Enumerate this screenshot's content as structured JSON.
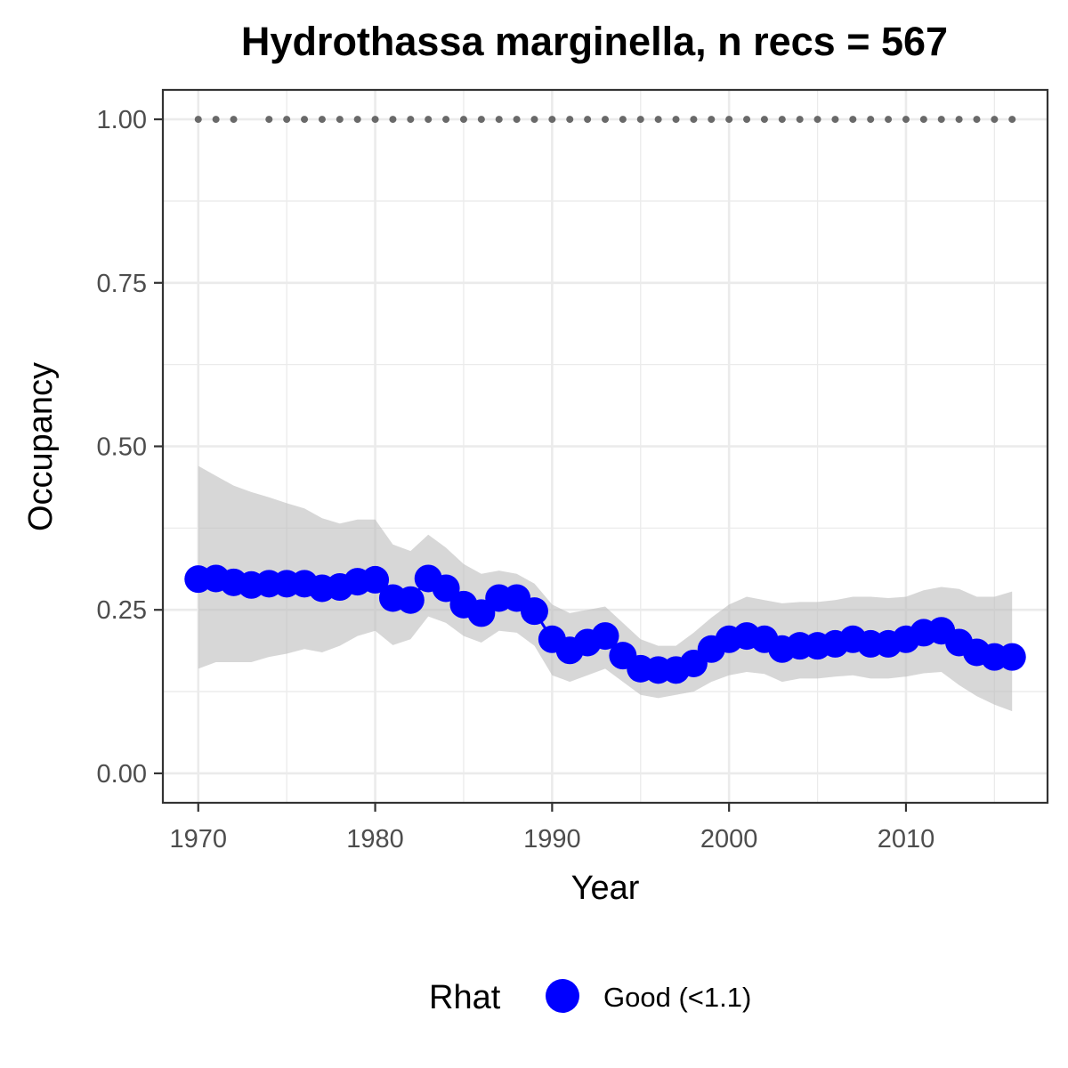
{
  "chart_data": {
    "type": "line",
    "title": "Hydrothassa marginella, n recs = 567",
    "xlabel": "Year",
    "ylabel": "Occupancy",
    "xlim": [
      1968,
      2018
    ],
    "ylim": [
      -0.045,
      1.045
    ],
    "x_ticks": [
      1970,
      1980,
      1990,
      2000,
      2010
    ],
    "x_tick_labels": [
      "1970",
      "1980",
      "1990",
      "2000",
      "2010"
    ],
    "y_ticks": [
      0,
      0.25,
      0.5,
      0.75,
      1.0
    ],
    "y_tick_labels": [
      "0.00",
      "0.25",
      "0.50",
      "0.75",
      "1.00"
    ],
    "grid": true,
    "legend": {
      "title": "Rhat",
      "position": "bottom",
      "entries": [
        {
          "label": "Good (<1.1)",
          "color": "#0000FF"
        }
      ]
    },
    "colors": {
      "series": "#0000FF",
      "ribbon": "#bdbdbd",
      "records": "#696969",
      "grid": "#ebebeb",
      "border": "#333333"
    },
    "series": [
      {
        "name": "Good (<1.1)",
        "x": [
          1970,
          1971,
          1972,
          1973,
          1974,
          1975,
          1976,
          1977,
          1978,
          1979,
          1980,
          1981,
          1982,
          1983,
          1984,
          1985,
          1986,
          1987,
          1988,
          1989,
          1990,
          1991,
          1992,
          1993,
          1994,
          1995,
          1996,
          1997,
          1998,
          1999,
          2000,
          2001,
          2002,
          2003,
          2004,
          2005,
          2006,
          2007,
          2008,
          2009,
          2010,
          2011,
          2012,
          2013,
          2014,
          2015,
          2016
        ],
        "y": [
          0.297,
          0.298,
          0.292,
          0.288,
          0.29,
          0.29,
          0.29,
          0.283,
          0.285,
          0.293,
          0.296,
          0.268,
          0.265,
          0.298,
          0.283,
          0.258,
          0.245,
          0.268,
          0.268,
          0.248,
          0.205,
          0.188,
          0.2,
          0.21,
          0.18,
          0.16,
          0.158,
          0.158,
          0.168,
          0.19,
          0.205,
          0.21,
          0.205,
          0.19,
          0.195,
          0.195,
          0.198,
          0.205,
          0.198,
          0.198,
          0.205,
          0.215,
          0.218,
          0.2,
          0.185,
          0.178,
          0.178
        ],
        "lower": [
          0.16,
          0.17,
          0.17,
          0.17,
          0.178,
          0.183,
          0.19,
          0.185,
          0.195,
          0.21,
          0.218,
          0.196,
          0.205,
          0.24,
          0.23,
          0.21,
          0.2,
          0.218,
          0.215,
          0.195,
          0.15,
          0.14,
          0.15,
          0.16,
          0.14,
          0.12,
          0.115,
          0.12,
          0.125,
          0.14,
          0.15,
          0.155,
          0.152,
          0.14,
          0.145,
          0.145,
          0.148,
          0.15,
          0.145,
          0.145,
          0.148,
          0.153,
          0.155,
          0.135,
          0.118,
          0.105,
          0.095
        ],
        "upper": [
          0.47,
          0.455,
          0.44,
          0.43,
          0.422,
          0.413,
          0.405,
          0.39,
          0.382,
          0.388,
          0.388,
          0.35,
          0.34,
          0.365,
          0.345,
          0.32,
          0.305,
          0.31,
          0.305,
          0.29,
          0.258,
          0.245,
          0.25,
          0.255,
          0.23,
          0.205,
          0.195,
          0.195,
          0.215,
          0.238,
          0.258,
          0.27,
          0.265,
          0.26,
          0.262,
          0.262,
          0.265,
          0.27,
          0.27,
          0.268,
          0.27,
          0.28,
          0.285,
          0.282,
          0.27,
          0.27,
          0.278
        ]
      }
    ],
    "record_years": [
      1970,
      1971,
      1972,
      1974,
      1975,
      1976,
      1977,
      1978,
      1979,
      1980,
      1981,
      1982,
      1983,
      1984,
      1985,
      1986,
      1987,
      1988,
      1989,
      1990,
      1991,
      1992,
      1993,
      1994,
      1995,
      1996,
      1997,
      1998,
      1999,
      2000,
      2001,
      2002,
      2003,
      2004,
      2005,
      2006,
      2007,
      2008,
      2009,
      2010,
      2011,
      2012,
      2013,
      2014,
      2015,
      2016
    ],
    "record_value": 1.0
  }
}
